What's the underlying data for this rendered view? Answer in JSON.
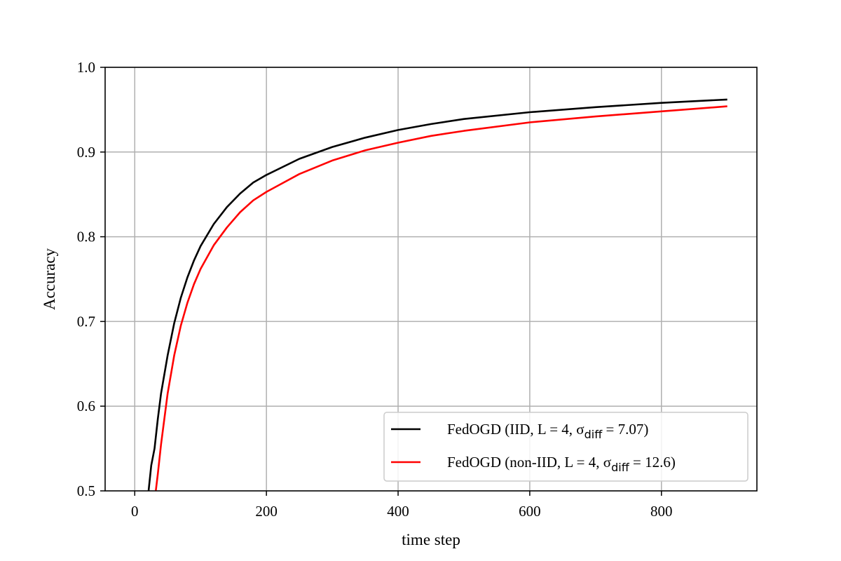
{
  "chart_data": {
    "type": "line",
    "title": "",
    "xlabel": "time step",
    "ylabel": "Accuracy",
    "xlim": [
      -45,
      945
    ],
    "ylim": [
      0.5,
      1.0
    ],
    "xticks": [
      0,
      200,
      400,
      600,
      800
    ],
    "yticks": [
      0.5,
      0.6,
      0.7,
      0.8,
      0.9,
      1.0
    ],
    "xtick_labels": [
      "0",
      "200",
      "400",
      "600",
      "800"
    ],
    "ytick_labels": [
      "0.5",
      "0.6",
      "0.7",
      "0.8",
      "0.9",
      "1.0"
    ],
    "grid": true,
    "legend_position": "bottom-right",
    "series": [
      {
        "name": "FedOGD (IID, L = 4, σdiff = 7.07)",
        "legend": {
          "before": "FedOGD (IID, L = 4, σ",
          "sub": "diff",
          "after": " = 7.07)"
        },
        "color": "#000000",
        "x": [
          21,
          25,
          30,
          35,
          40,
          50,
          60,
          70,
          80,
          90,
          100,
          120,
          140,
          160,
          180,
          200,
          250,
          300,
          350,
          400,
          450,
          500,
          600,
          700,
          800,
          900
        ],
        "y": [
          0.5,
          0.53,
          0.55,
          0.585,
          0.615,
          0.66,
          0.698,
          0.728,
          0.752,
          0.772,
          0.789,
          0.815,
          0.835,
          0.851,
          0.864,
          0.873,
          0.892,
          0.906,
          0.917,
          0.926,
          0.933,
          0.939,
          0.947,
          0.953,
          0.958,
          0.962
        ]
      },
      {
        "name": "FedOGD (non-IID, L = 4, σdiff = 12.6)",
        "legend": {
          "before": "FedOGD (non-IID, L = 4, σ",
          "sub": "diff",
          "after": " = 12.6)"
        },
        "color": "#ff0000",
        "x": [
          32,
          35,
          40,
          45,
          50,
          60,
          70,
          80,
          90,
          100,
          120,
          140,
          160,
          180,
          200,
          250,
          300,
          350,
          400,
          450,
          500,
          600,
          700,
          800,
          900
        ],
        "y": [
          0.5,
          0.52,
          0.555,
          0.585,
          0.615,
          0.66,
          0.695,
          0.722,
          0.744,
          0.762,
          0.79,
          0.811,
          0.829,
          0.843,
          0.853,
          0.874,
          0.89,
          0.902,
          0.911,
          0.919,
          0.925,
          0.935,
          0.942,
          0.948,
          0.954
        ]
      }
    ]
  }
}
